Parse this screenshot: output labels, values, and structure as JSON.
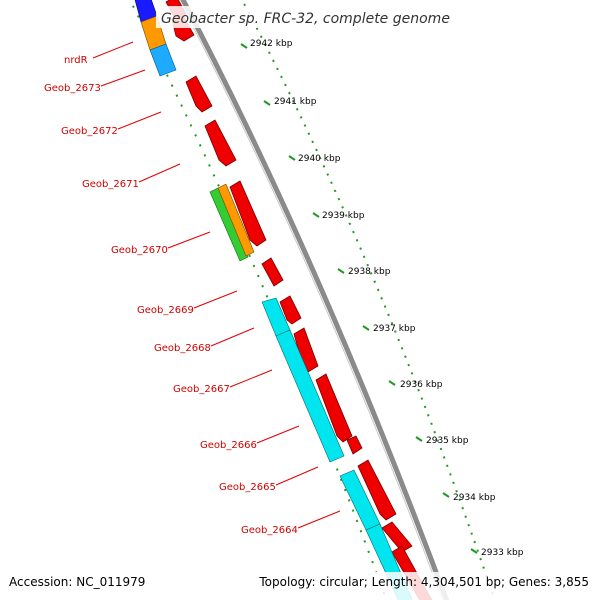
{
  "title": "Geobacter sp. FRC-32, complete genome",
  "footer": {
    "accession": "Accession: NC_011979",
    "summary": "Topology: circular; Length: 4,304,501 bp; Genes: 3,855"
  },
  "colors": {
    "backbone": "#8a8a8a",
    "feature_red": "#ee0000",
    "feature_cyan": "#00e5ee",
    "feature_orange": "#ff9900",
    "feature_green": "#33cc33",
    "feature_blue": "#1a1aff",
    "feature_lightblue": "#1eaaff",
    "tick_green": "#229922",
    "label_red": "#d40000"
  },
  "kbp_ticks": [
    "2942 kbp",
    "2941 kbp",
    "2940 kbp",
    "2939 kbp",
    "2938 kbp",
    "2937 kbp",
    "2936 kbp",
    "2935 kbp",
    "2934 kbp",
    "2933 kbp"
  ],
  "gene_labels": [
    "nrdR",
    "Geob_2673",
    "Geob_2672",
    "Geob_2671",
    "Geob_2670",
    "Geob_2669",
    "Geob_2668",
    "Geob_2667",
    "Geob_2666",
    "Geob_2665",
    "Geob_2664"
  ]
}
